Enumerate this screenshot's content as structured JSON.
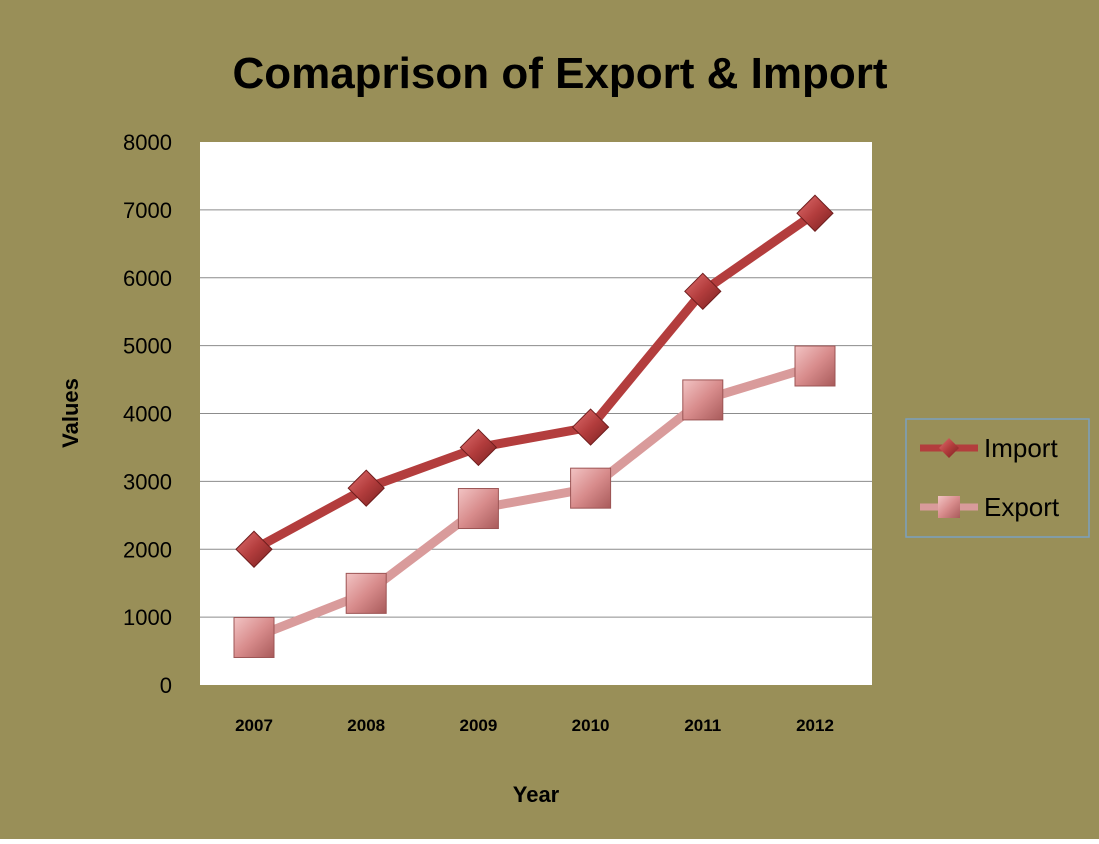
{
  "colors": {
    "frame_bg": "#998f58",
    "plot_bg": "#ffffff",
    "gridline": "#8c8c8c",
    "import": "#b33d3d",
    "import_marker": "#c04545",
    "export": "#d99b9b",
    "export_marker": "#d88c8c",
    "legend_border": "#7aa0c0",
    "text": "#000000"
  },
  "chart_data": {
    "type": "line",
    "title": "Comaprison of Export & Import",
    "xlabel": "Year",
    "ylabel": "Values",
    "categories": [
      "2007",
      "2008",
      "2009",
      "2010",
      "2011",
      "2012"
    ],
    "ylim": [
      0,
      8000
    ],
    "yticks": [
      "0",
      "1000",
      "2000",
      "3000",
      "4000",
      "5000",
      "6000",
      "7000",
      "8000"
    ],
    "grid": true,
    "legend_position": "right",
    "series": [
      {
        "name": "Import",
        "values": [
          2000,
          2900,
          3500,
          3800,
          5800,
          6950
        ],
        "marker": "diamond"
      },
      {
        "name": "Export",
        "values": [
          700,
          1350,
          2600,
          2900,
          4200,
          4700
        ],
        "marker": "square"
      }
    ]
  }
}
